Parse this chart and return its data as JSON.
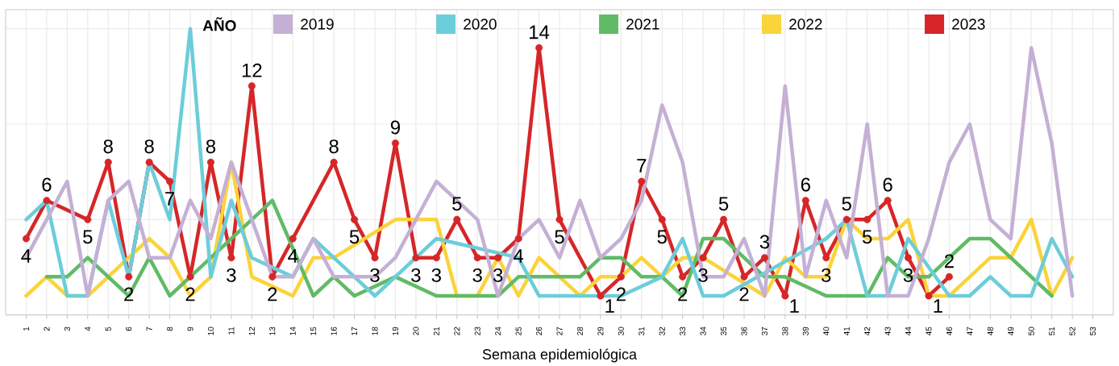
{
  "chart_data": {
    "type": "line",
    "xlabel": "Semana epidemiológica",
    "legend_title": "AÑO",
    "legend": "top",
    "grid": true,
    "tick_labels": "x",
    "categories": [
      "1",
      "2",
      "3",
      "4",
      "5",
      "6",
      "7",
      "8",
      "9",
      "10",
      "11",
      "12",
      "13",
      "14",
      "15",
      "16",
      "17",
      "18",
      "19",
      "20",
      "21",
      "22",
      "23",
      "24",
      "25",
      "26",
      "27",
      "28",
      "29",
      "30",
      "31",
      "32",
      "33",
      "34",
      "35",
      "36",
      "37",
      "38",
      "39",
      "40",
      "41",
      "42",
      "43",
      "44",
      "45",
      "46",
      "47",
      "48",
      "49",
      "50",
      "51",
      "52",
      "53"
    ],
    "ylim": [
      0,
      16
    ],
    "yticks": [
      {
        "value": 0,
        "label": null
      },
      {
        "value": 5,
        "label": null
      },
      {
        "value": 10,
        "label": null
      },
      {
        "value": 15,
        "label": null
      }
    ],
    "series": [
      {
        "name": "2019",
        "color": "#c5b0d5",
        "values": [
          3,
          5,
          7,
          1,
          6,
          7,
          3,
          3,
          6,
          4,
          8,
          5,
          2,
          2,
          4,
          2,
          2,
          2,
          3,
          5,
          7,
          6,
          5,
          1,
          4,
          5,
          3,
          6,
          3,
          4,
          6,
          11,
          8,
          2,
          2,
          4,
          1,
          12,
          2,
          6,
          3,
          10,
          1,
          1,
          4,
          8,
          10,
          5,
          4,
          14,
          9,
          1,
          null
        ]
      },
      {
        "name": "2020",
        "color": "#6ccdda",
        "values": [
          5,
          6,
          1,
          1,
          6,
          2,
          8,
          5,
          15,
          2,
          6,
          3,
          null,
          2,
          4,
          3,
          2,
          1,
          2,
          3,
          4,
          null,
          null,
          null,
          3,
          1,
          1,
          1,
          1,
          1,
          null,
          2,
          4,
          1,
          1,
          null,
          null,
          null,
          null,
          4,
          5,
          1,
          1,
          4,
          null,
          1,
          1,
          2,
          1,
          1,
          4,
          2,
          null
        ]
      },
      {
        "name": "2021",
        "color": "#60bb66",
        "values": [
          null,
          2,
          2,
          3,
          2,
          1,
          3,
          1,
          2,
          3,
          4,
          5,
          6,
          null,
          1,
          2,
          1,
          null,
          2,
          null,
          1,
          1,
          1,
          1,
          2,
          2,
          2,
          2,
          3,
          3,
          2,
          2,
          1,
          4,
          4,
          3,
          2,
          2,
          null,
          1,
          1,
          1,
          3,
          2,
          2,
          3,
          4,
          4,
          3,
          2,
          1,
          null,
          null
        ]
      },
      {
        "name": "2022",
        "color": "#fbd33a",
        "values": [
          1,
          2,
          1,
          1,
          2,
          3,
          4,
          3,
          1,
          2,
          8,
          2,
          null,
          1,
          3,
          3,
          null,
          null,
          5,
          5,
          5,
          1,
          1,
          3,
          1,
          3,
          2,
          1,
          2,
          2,
          3,
          2,
          3,
          3,
          null,
          null,
          1,
          3,
          2,
          2,
          5,
          4,
          4,
          5,
          1,
          1,
          2,
          3,
          3,
          5,
          1,
          3,
          null
        ]
      },
      {
        "name": "2023",
        "color": "#d62628",
        "marker": "circle",
        "values": [
          4,
          6,
          null,
          5,
          8,
          2,
          8,
          7,
          2,
          8,
          3,
          12,
          2,
          4,
          null,
          8,
          5,
          3,
          9,
          3,
          3,
          5,
          3,
          3,
          4,
          14,
          5,
          null,
          1,
          2,
          7,
          5,
          2,
          3,
          5,
          2,
          3,
          1,
          6,
          3,
          5,
          5,
          6,
          3,
          1,
          2,
          null,
          null,
          null,
          null,
          null,
          null,
          null
        ],
        "value_labels": [
          "4",
          "6",
          null,
          "5",
          "8",
          "2",
          "8",
          "7",
          "2",
          "8",
          "3",
          "12",
          "2",
          "4",
          null,
          "8",
          "5",
          "3",
          "9",
          "3",
          "3",
          "5",
          "3",
          "3",
          "4",
          "14",
          "5",
          null,
          "1",
          "2",
          "7",
          "5",
          "2",
          "3",
          "5",
          "2",
          "3",
          "1",
          "6",
          "3",
          "5",
          "5",
          "6",
          "3",
          "1",
          "2",
          null,
          null,
          null,
          null,
          null,
          null,
          null
        ]
      }
    ]
  }
}
